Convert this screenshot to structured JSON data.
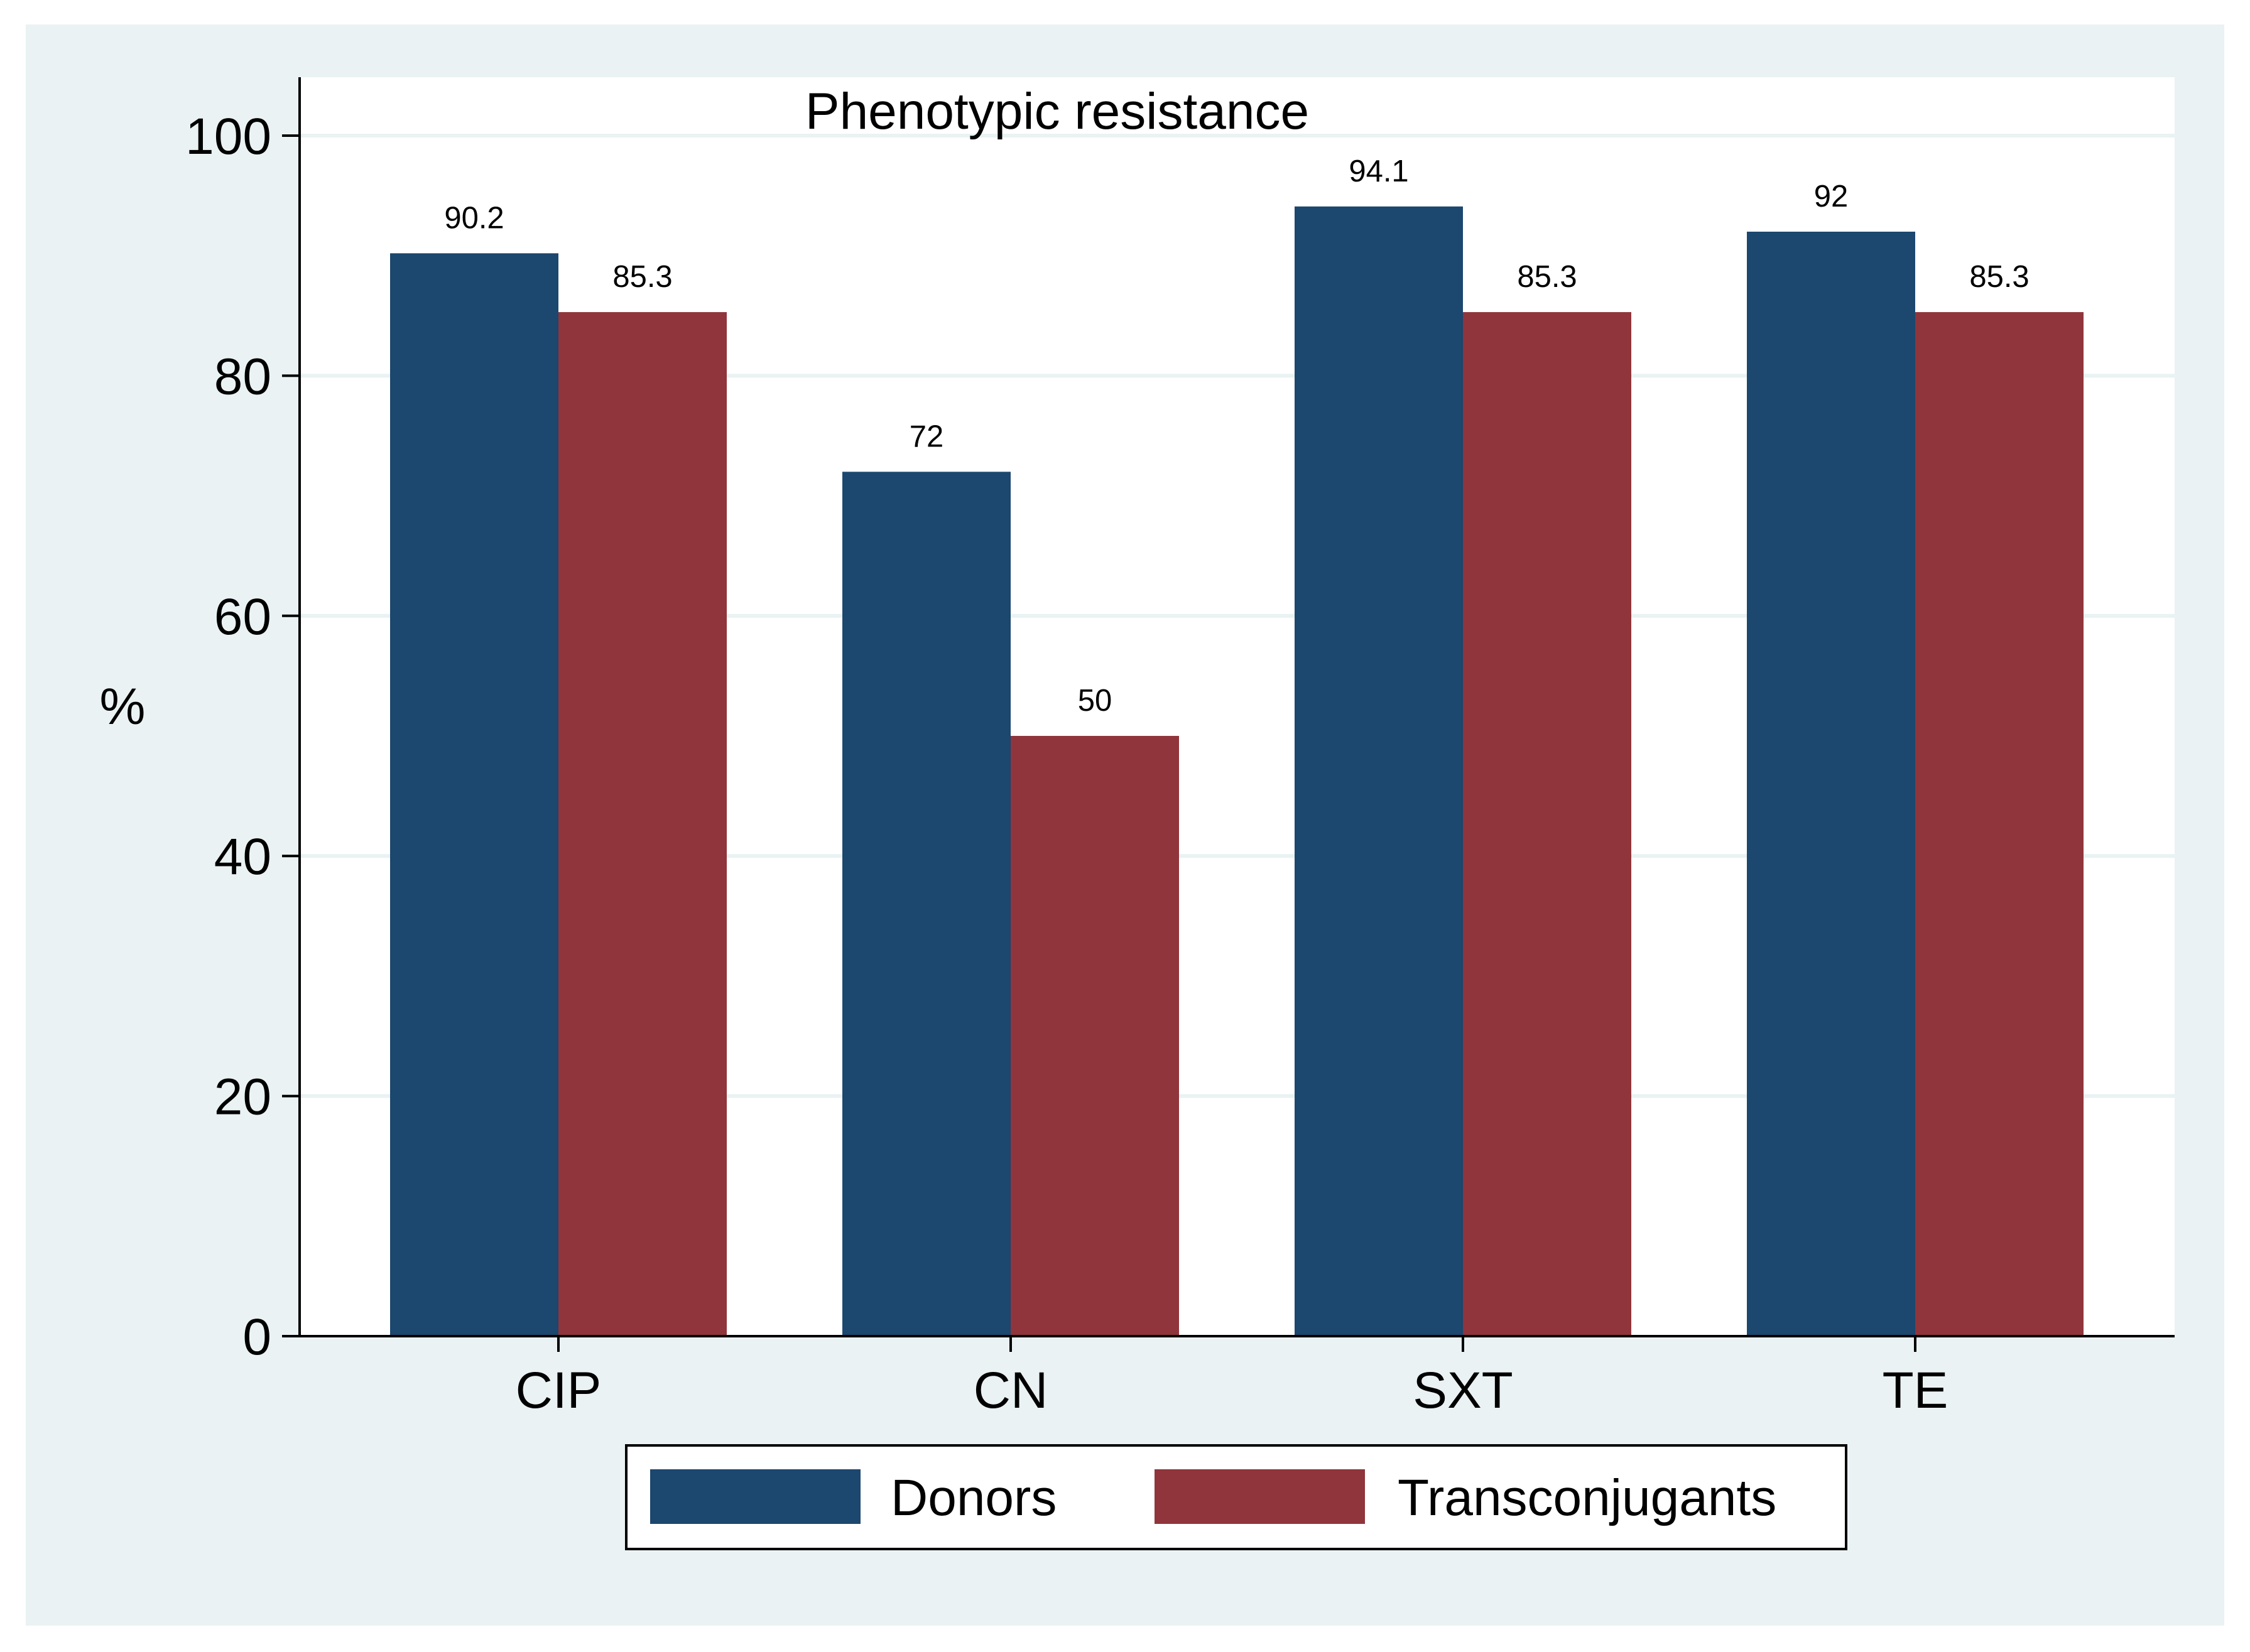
{
  "colors": {
    "outer_background": "#eaf2f3",
    "plot_background": "#ffffff",
    "gridline": "#eaf2f3",
    "donors": "#1c476e",
    "transconjugants": "#90353b",
    "axis": "#000000"
  },
  "chart_data": {
    "type": "bar",
    "title": "Phenotypic resistance",
    "xlabel": "",
    "ylabel": "%",
    "ylim": [
      0,
      105
    ],
    "yticks": [
      0,
      20,
      40,
      60,
      80,
      100
    ],
    "ytick_labels": [
      "0",
      "20",
      "40",
      "60",
      "80",
      "100"
    ],
    "grid": true,
    "legend_position": "bottom",
    "categories": [
      "CIP",
      "CN",
      "SXT",
      "TE"
    ],
    "series": [
      {
        "name": "Donors",
        "values": [
          90.2,
          72,
          94.1,
          92
        ],
        "labels": [
          "90.2",
          "72",
          "94.1",
          "92"
        ]
      },
      {
        "name": "Transconjugants",
        "values": [
          85.3,
          50,
          85.3,
          85.3
        ],
        "labels": [
          "85.3",
          "50",
          "85.3",
          "85.3"
        ]
      }
    ]
  }
}
